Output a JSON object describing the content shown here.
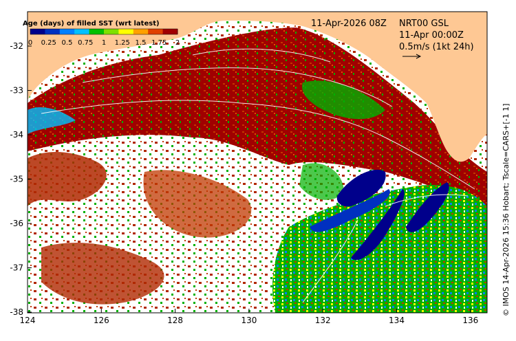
{
  "colorbar": {
    "title": "Age (days) of filled SST (wrt latest)",
    "ticks": [
      "0",
      "0.25",
      "0.5",
      "0.75",
      "1",
      "1.25",
      "1.5",
      "1.75",
      "2"
    ],
    "colors": [
      "#00008b",
      "#0030c0",
      "#0080ff",
      "#00c0ff",
      "#00c000",
      "#7fe000",
      "#ffff00",
      "#ffa000",
      "#e04000",
      "#a00000"
    ]
  },
  "annotations": {
    "datetime": "11-Apr-2026 08Z",
    "product": "NRT00 GSL",
    "product_time": "11-Apr 00:00Z",
    "scale_label": "0.5m/s (1kt 24h)"
  },
  "credit": "© IMOS 14-Apr-2026 15:36 Hobart; Tscale=CARS+[-1 1]",
  "axes": {
    "x_ticks": [
      "124",
      "126",
      "128",
      "130",
      "132",
      "134",
      "136"
    ],
    "y_ticks": [
      "-32",
      "-33",
      "-34",
      "-35",
      "-36",
      "-37",
      "-38"
    ]
  },
  "colors": {
    "land": "#fec894",
    "sea_dark_red": "#a00000",
    "sea_red_orange": "#c03800",
    "green": "#00b000",
    "dark_blue": "#00008b",
    "no_data": "#ffffff"
  }
}
